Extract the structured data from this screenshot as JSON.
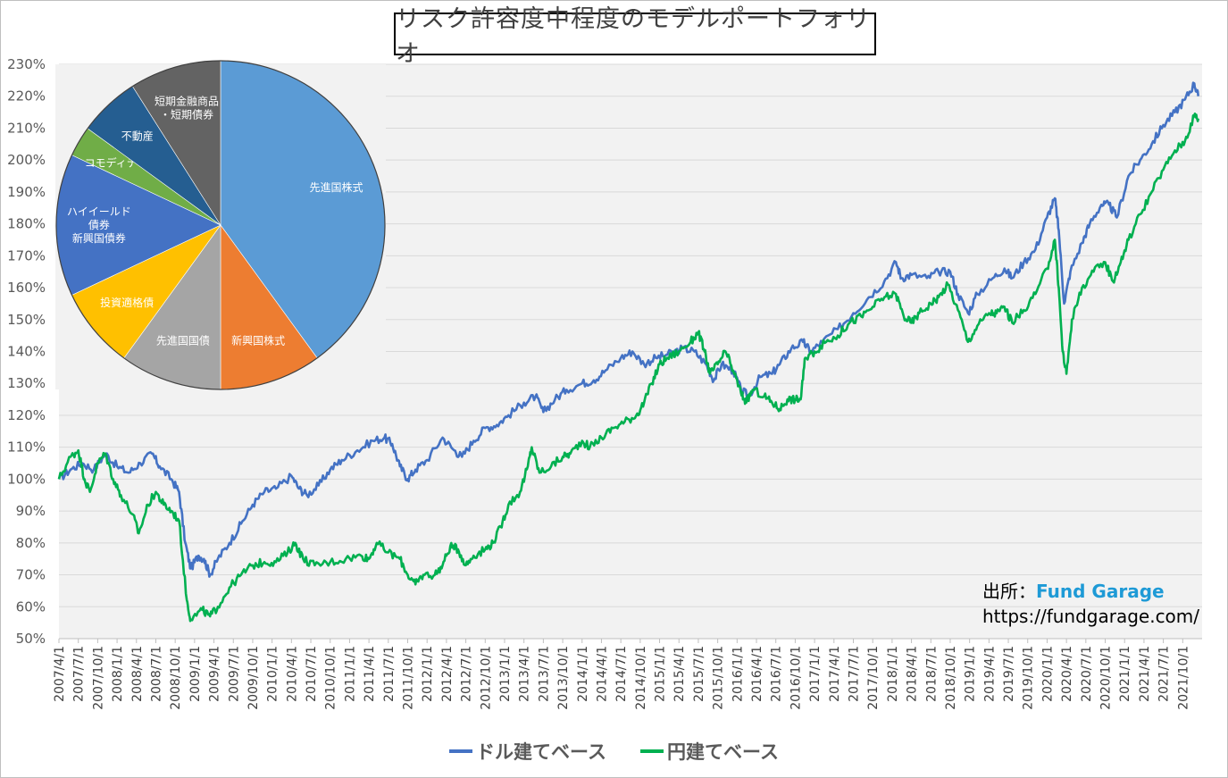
{
  "chart_data": [
    {
      "type": "line",
      "title": "リスク許容度中程度のモデルポートフォリオ",
      "y_ticks": [
        "50%",
        "60%",
        "70%",
        "80%",
        "90%",
        "100%",
        "110%",
        "120%",
        "130%",
        "140%",
        "150%",
        "160%",
        "170%",
        "180%",
        "190%",
        "200%",
        "210%",
        "220%",
        "230%"
      ],
      "ylim": [
        50,
        230
      ],
      "x_ticks": [
        "2007/4/1",
        "2007/7/1",
        "2007/10/1",
        "2008/1/1",
        "2008/4/1",
        "2008/7/1",
        "2008/10/1",
        "2009/1/1",
        "2009/4/1",
        "2009/7/1",
        "2009/10/1",
        "2010/1/1",
        "2010/4/1",
        "2010/7/1",
        "2010/10/1",
        "2011/1/1",
        "2011/4/1",
        "2011/7/1",
        "2011/10/1",
        "2012/1/1",
        "2012/4/1",
        "2012/7/1",
        "2012/10/1",
        "2013/1/1",
        "2013/4/1",
        "2013/7/1",
        "2013/10/1",
        "2014/1/1",
        "2014/4/1",
        "2014/7/1",
        "2014/10/1",
        "2015/1/1",
        "2015/4/1",
        "2015/7/1",
        "2015/10/1",
        "2016/1/1",
        "2016/4/1",
        "2016/7/1",
        "2016/10/1",
        "2017/1/1",
        "2017/4/1",
        "2017/7/1",
        "2017/10/1",
        "2018/1/1",
        "2018/4/1",
        "2018/7/1",
        "2018/10/1",
        "2019/1/1",
        "2019/4/1",
        "2019/7/1",
        "2019/10/1",
        "2020/1/1",
        "2020/4/1",
        "2020/7/1",
        "2020/10/1",
        "2021/1/1",
        "2021/4/1",
        "2021/7/1",
        "2021/10/1"
      ],
      "grid": true,
      "legend_position": "bottom",
      "series": [
        {
          "name": "ドル建てベース",
          "color": "#4472c4",
          "points": [
            [
              2007.25,
              100
            ],
            [
              2007.4,
              103
            ],
            [
              2007.55,
              105
            ],
            [
              2007.7,
              103
            ],
            [
              2007.85,
              108
            ],
            [
              2008.0,
              104
            ],
            [
              2008.15,
              102
            ],
            [
              2008.3,
              105
            ],
            [
              2008.45,
              108
            ],
            [
              2008.55,
              104
            ],
            [
              2008.7,
              100
            ],
            [
              2008.8,
              96
            ],
            [
              2008.88,
              80
            ],
            [
              2008.95,
              72
            ],
            [
              2009.05,
              76
            ],
            [
              2009.12,
              75
            ],
            [
              2009.2,
              70
            ],
            [
              2009.3,
              75
            ],
            [
              2009.45,
              80
            ],
            [
              2009.6,
              86
            ],
            [
              2009.75,
              92
            ],
            [
              2009.9,
              96
            ],
            [
              2010.05,
              97
            ],
            [
              2010.25,
              101
            ],
            [
              2010.35,
              97
            ],
            [
              2010.45,
              95
            ],
            [
              2010.6,
              98
            ],
            [
              2010.75,
              103
            ],
            [
              2010.9,
              106
            ],
            [
              2011.1,
              109
            ],
            [
              2011.3,
              112
            ],
            [
              2011.45,
              113
            ],
            [
              2011.55,
              111
            ],
            [
              2011.65,
              104
            ],
            [
              2011.75,
              100
            ],
            [
              2011.85,
              103
            ],
            [
              2012.0,
              106
            ],
            [
              2012.2,
              113
            ],
            [
              2012.35,
              109
            ],
            [
              2012.45,
              107
            ],
            [
              2012.6,
              112
            ],
            [
              2012.75,
              116
            ],
            [
              2012.9,
              117
            ],
            [
              2013.05,
              120
            ],
            [
              2013.25,
              124
            ],
            [
              2013.4,
              126
            ],
            [
              2013.5,
              121
            ],
            [
              2013.65,
              125
            ],
            [
              2013.8,
              128
            ],
            [
              2014.0,
              130
            ],
            [
              2014.15,
              131
            ],
            [
              2014.3,
              134
            ],
            [
              2014.5,
              138
            ],
            [
              2014.65,
              140
            ],
            [
              2014.8,
              136
            ],
            [
              2014.95,
              138
            ],
            [
              2015.1,
              139
            ],
            [
              2015.3,
              141
            ],
            [
              2015.45,
              140
            ],
            [
              2015.6,
              136
            ],
            [
              2015.7,
              131
            ],
            [
              2015.8,
              136
            ],
            [
              2015.95,
              134
            ],
            [
              2016.05,
              128
            ],
            [
              2016.15,
              126
            ],
            [
              2016.3,
              132
            ],
            [
              2016.45,
              133
            ],
            [
              2016.55,
              136
            ],
            [
              2016.7,
              141
            ],
            [
              2016.85,
              143
            ],
            [
              2016.95,
              140
            ],
            [
              2017.1,
              143
            ],
            [
              2017.3,
              147
            ],
            [
              2017.5,
              152
            ],
            [
              2017.7,
              157
            ],
            [
              2017.9,
              162
            ],
            [
              2018.05,
              168
            ],
            [
              2018.12,
              163
            ],
            [
              2018.25,
              164
            ],
            [
              2018.45,
              163
            ],
            [
              2018.6,
              165
            ],
            [
              2018.75,
              165
            ],
            [
              2018.85,
              158
            ],
            [
              2018.98,
              152
            ],
            [
              2019.1,
              158
            ],
            [
              2019.3,
              163
            ],
            [
              2019.45,
              166
            ],
            [
              2019.55,
              163
            ],
            [
              2019.7,
              168
            ],
            [
              2019.85,
              172
            ],
            [
              2020.0,
              182
            ],
            [
              2020.1,
              188
            ],
            [
              2020.15,
              178
            ],
            [
              2020.22,
              155
            ],
            [
              2020.3,
              165
            ],
            [
              2020.45,
              174
            ],
            [
              2020.55,
              180
            ],
            [
              2020.7,
              186
            ],
            [
              2020.8,
              186
            ],
            [
              2020.9,
              182
            ],
            [
              2021.05,
              195
            ],
            [
              2021.2,
              200
            ],
            [
              2021.35,
              205
            ],
            [
              2021.5,
              211
            ],
            [
              2021.65,
              215
            ],
            [
              2021.78,
              219
            ],
            [
              2021.9,
              224
            ],
            [
              2021.95,
              220
            ]
          ]
        },
        {
          "name": "円建てベース",
          "color": "#00b050",
          "points": [
            [
              2007.25,
              100
            ],
            [
              2007.4,
              107
            ],
            [
              2007.5,
              109
            ],
            [
              2007.58,
              100
            ],
            [
              2007.65,
              96
            ],
            [
              2007.75,
              105
            ],
            [
              2007.85,
              108
            ],
            [
              2007.95,
              100
            ],
            [
              2008.05,
              95
            ],
            [
              2008.2,
              89
            ],
            [
              2008.28,
              83
            ],
            [
              2008.4,
              92
            ],
            [
              2008.5,
              96
            ],
            [
              2008.6,
              92
            ],
            [
              2008.7,
              90
            ],
            [
              2008.8,
              87
            ],
            [
              2008.9,
              62
            ],
            [
              2008.95,
              56
            ],
            [
              2009.1,
              59
            ],
            [
              2009.2,
              57
            ],
            [
              2009.3,
              60
            ],
            [
              2009.45,
              66
            ],
            [
              2009.6,
              70
            ],
            [
              2009.75,
              73
            ],
            [
              2009.9,
              74
            ],
            [
              2010.05,
              74
            ],
            [
              2010.2,
              77
            ],
            [
              2010.3,
              80
            ],
            [
              2010.4,
              75
            ],
            [
              2010.55,
              73
            ],
            [
              2010.75,
              74
            ],
            [
              2010.95,
              75
            ],
            [
              2011.15,
              76
            ],
            [
              2011.25,
              75
            ],
            [
              2011.35,
              80
            ],
            [
              2011.5,
              77
            ],
            [
              2011.65,
              75
            ],
            [
              2011.75,
              70
            ],
            [
              2011.85,
              67
            ],
            [
              2011.95,
              70
            ],
            [
              2012.1,
              70
            ],
            [
              2012.2,
              73
            ],
            [
              2012.3,
              79
            ],
            [
              2012.4,
              78
            ],
            [
              2012.5,
              73
            ],
            [
              2012.6,
              76
            ],
            [
              2012.75,
              78
            ],
            [
              2012.85,
              80
            ],
            [
              2012.95,
              85
            ],
            [
              2013.05,
              92
            ],
            [
              2013.2,
              96
            ],
            [
              2013.3,
              104
            ],
            [
              2013.35,
              110
            ],
            [
              2013.45,
              102
            ],
            [
              2013.6,
              104
            ],
            [
              2013.75,
              107
            ],
            [
              2013.85,
              108
            ],
            [
              2014.0,
              112
            ],
            [
              2014.1,
              110
            ],
            [
              2014.25,
              113
            ],
            [
              2014.4,
              116
            ],
            [
              2014.55,
              118
            ],
            [
              2014.7,
              120
            ],
            [
              2014.8,
              124
            ],
            [
              2014.9,
              130
            ],
            [
              2015.0,
              136
            ],
            [
              2015.1,
              138
            ],
            [
              2015.25,
              140
            ],
            [
              2015.4,
              143
            ],
            [
              2015.5,
              146
            ],
            [
              2015.58,
              140
            ],
            [
              2015.65,
              133
            ],
            [
              2015.75,
              136
            ],
            [
              2015.85,
              140
            ],
            [
              2015.95,
              134
            ],
            [
              2016.05,
              127
            ],
            [
              2016.12,
              124
            ],
            [
              2016.2,
              128
            ],
            [
              2016.35,
              126
            ],
            [
              2016.45,
              124
            ],
            [
              2016.55,
              122
            ],
            [
              2016.65,
              125
            ],
            [
              2016.75,
              125
            ],
            [
              2016.82,
              125
            ],
            [
              2016.88,
              138
            ],
            [
              2017.0,
              140
            ],
            [
              2017.15,
              143
            ],
            [
              2017.3,
              145
            ],
            [
              2017.45,
              149
            ],
            [
              2017.6,
              151
            ],
            [
              2017.75,
              154
            ],
            [
              2017.9,
              157
            ],
            [
              2018.05,
              158
            ],
            [
              2018.15,
              151
            ],
            [
              2018.25,
              149
            ],
            [
              2018.35,
              152
            ],
            [
              2018.5,
              155
            ],
            [
              2018.6,
              157
            ],
            [
              2018.72,
              161
            ],
            [
              2018.85,
              153
            ],
            [
              2018.98,
              143
            ],
            [
              2019.1,
              148
            ],
            [
              2019.25,
              152
            ],
            [
              2019.35,
              152
            ],
            [
              2019.45,
              154
            ],
            [
              2019.55,
              149
            ],
            [
              2019.7,
              153
            ],
            [
              2019.85,
              158
            ],
            [
              2020.0,
              166
            ],
            [
              2020.1,
              175
            ],
            [
              2020.15,
              160
            ],
            [
              2020.2,
              140
            ],
            [
              2020.25,
              133
            ],
            [
              2020.32,
              150
            ],
            [
              2020.45,
              160
            ],
            [
              2020.6,
              165
            ],
            [
              2020.75,
              168
            ],
            [
              2020.85,
              162
            ],
            [
              2020.95,
              168
            ],
            [
              2021.05,
              175
            ],
            [
              2021.2,
              183
            ],
            [
              2021.35,
              190
            ],
            [
              2021.5,
              197
            ],
            [
              2021.65,
              203
            ],
            [
              2021.78,
              206
            ],
            [
              2021.9,
              214
            ],
            [
              2021.95,
              213
            ]
          ]
        }
      ]
    },
    {
      "type": "pie",
      "slices": [
        {
          "label": "先進国株式",
          "value": 40,
          "color": "#5b9bd5"
        },
        {
          "label": "新興国株式",
          "value": 10,
          "color": "#ed7d31"
        },
        {
          "label": "先進国国債",
          "value": 10,
          "color": "#a5a5a5"
        },
        {
          "label": "投資適格債",
          "value": 8,
          "color": "#ffc000"
        },
        {
          "label": "ハイイールド債券・新興国債券",
          "value": 14,
          "color": "#4472c4"
        },
        {
          "label": "コモディティ",
          "value": 3,
          "color": "#70ad47"
        },
        {
          "label": "不動産",
          "value": 6,
          "color": "#255e91"
        },
        {
          "label": "短期金融商品・短期債券",
          "value": 9,
          "color": "#636363"
        }
      ],
      "slice_label_lines": [
        [
          "先進国株式"
        ],
        [
          "新興国株式"
        ],
        [
          "先進国国債"
        ],
        [
          "投資適格債"
        ],
        [
          "ハイイールド",
          "債券",
          "新興国債券"
        ],
        [
          "コモディティ"
        ],
        [
          "不動産"
        ],
        [
          "短期金融商品",
          "・短期債券"
        ]
      ]
    }
  ],
  "source": {
    "prefix": "出所：",
    "brand": "Fund Garage",
    "url": "https://fundgarage.com/"
  }
}
